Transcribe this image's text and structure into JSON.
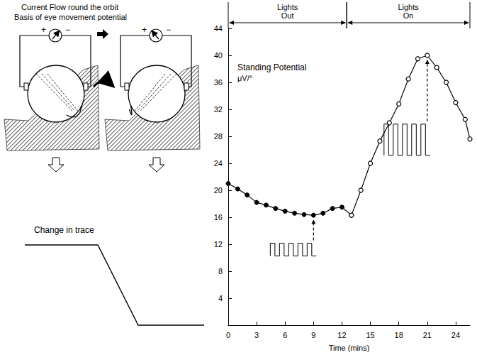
{
  "chart_data": {
    "type": "line",
    "title": "Standing Potential",
    "subtitle": "μV/°",
    "xlabel": "Time (mins)",
    "xlim": [
      0,
      25.5
    ],
    "xticks": [
      0,
      3,
      6,
      9,
      12,
      15,
      18,
      21,
      24
    ],
    "ylim": [
      0,
      44
    ],
    "yticks": [
      4,
      8,
      12,
      16,
      20,
      24,
      28,
      32,
      36,
      40,
      44
    ],
    "grid": false,
    "phases": [
      {
        "label": "Lights Out",
        "from": 0,
        "to": 12.5
      },
      {
        "label": "Lights On",
        "from": 12.5,
        "to": 25.5
      }
    ],
    "trace_insets": [
      {
        "x": 9
      },
      {
        "x": 21
      }
    ],
    "series": [
      {
        "x": [
          0,
          1,
          2,
          3,
          4,
          5,
          6,
          7,
          8,
          9,
          10,
          11,
          12,
          13
        ],
        "values": [
          21,
          20.2,
          19.3,
          18.2,
          17.8,
          17.3,
          16.9,
          16.6,
          16.4,
          16.3,
          16.6,
          17.3,
          17.5,
          16.3
        ],
        "marker": "filled",
        "color": "#000000"
      },
      {
        "x": [
          13,
          14,
          15,
          16,
          17,
          18,
          19,
          20,
          21,
          22,
          23,
          24,
          25,
          25.5
        ],
        "values": [
          16.3,
          20,
          24,
          27.3,
          30,
          32.8,
          36.5,
          39.5,
          40,
          38.2,
          36,
          33,
          30.5,
          27.6
        ],
        "marker": "open",
        "color": "#000000"
      }
    ]
  },
  "diagram": {
    "title_lines": [
      "Current Flow round the orbit",
      "Basis of eye movement potential"
    ],
    "meter_signs": [
      "+",
      "−"
    ],
    "trace_label": "Change in trace"
  }
}
